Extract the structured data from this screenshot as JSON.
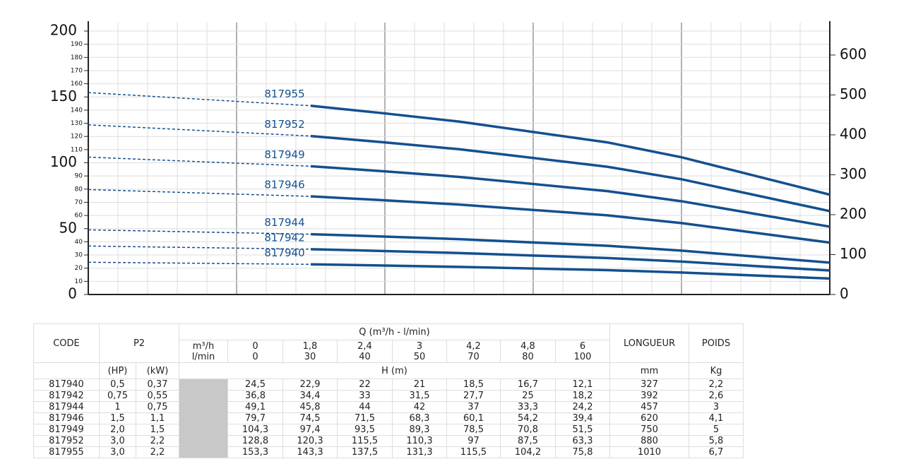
{
  "chart_data": {
    "type": "line",
    "x": [
      0,
      30,
      40,
      50,
      70,
      80,
      100
    ],
    "xlim": [
      0,
      100
    ],
    "xticks": [
      0,
      4,
      8,
      12,
      16,
      20,
      24,
      28,
      32,
      36,
      40,
      44,
      48,
      52,
      56,
      60,
      64,
      68,
      72,
      76,
      80,
      84,
      88,
      92,
      96,
      100
    ],
    "ylim": [
      0,
      200
    ],
    "yticks": [
      0,
      10,
      20,
      30,
      40,
      50,
      60,
      70,
      80,
      90,
      100,
      110,
      120,
      130,
      140,
      150,
      160,
      170,
      180,
      190,
      200
    ],
    "y2lim": [
      0,
      660
    ],
    "y2ticks": [
      0,
      100,
      200,
      300,
      400,
      500,
      600
    ],
    "grid": true,
    "series": [
      {
        "name": "817940",
        "color": "#13508f",
        "values": [
          24.5,
          22.9,
          22,
          21,
          18.5,
          16.7,
          12.1
        ]
      },
      {
        "name": "817942",
        "color": "#13508f",
        "values": [
          36.8,
          34.4,
          33,
          31.5,
          27.7,
          25,
          18.2
        ]
      },
      {
        "name": "817944",
        "color": "#13508f",
        "values": [
          49.1,
          45.8,
          44,
          42,
          37,
          33.3,
          24.2
        ]
      },
      {
        "name": "817946",
        "color": "#13508f",
        "values": [
          79.7,
          74.5,
          71.5,
          68.3,
          60.1,
          54.2,
          39.4
        ]
      },
      {
        "name": "817949",
        "color": "#13508f",
        "values": [
          104.3,
          97.4,
          93.5,
          89.3,
          78.5,
          70.8,
          51.5
        ]
      },
      {
        "name": "817952",
        "color": "#13508f",
        "values": [
          128.8,
          120.3,
          115.5,
          110.3,
          97,
          87.5,
          63.3
        ]
      },
      {
        "name": "817955",
        "color": "#13508f",
        "values": [
          153.3,
          143.3,
          137.5,
          131.3,
          115.5,
          104.2,
          75.8
        ]
      }
    ]
  },
  "table": {
    "code": "CODE",
    "p2": "P2",
    "q_title": "Q (m³/h - l/min)",
    "unit_m3h": "m³/h",
    "unit_lmin": "l/min",
    "q_m3h": [
      "0",
      "1,8",
      "2,4",
      "3",
      "4,2",
      "4,8",
      "6"
    ],
    "q_lmin": [
      "0",
      "30",
      "40",
      "50",
      "70",
      "80",
      "100"
    ],
    "longueur": "LONGUEUR",
    "poids": "POIDS",
    "hp": "(HP)",
    "kw": "(kW)",
    "h": "H (m)",
    "mm": "mm",
    "kg": "Kg",
    "rows": [
      [
        "817940",
        "0,5",
        "0,37",
        "24,5",
        "22,9",
        "22",
        "21",
        "18,5",
        "16,7",
        "12,1",
        "327",
        "2,2"
      ],
      [
        "817942",
        "0,75",
        "0,55",
        "36,8",
        "34,4",
        "33",
        "31,5",
        "27,7",
        "25",
        "18,2",
        "392",
        "2,6"
      ],
      [
        "817944",
        "1",
        "0,75",
        "49,1",
        "45,8",
        "44",
        "42",
        "37",
        "33,3",
        "24,2",
        "457",
        "3"
      ],
      [
        "817946",
        "1,5",
        "1,1",
        "79,7",
        "74,5",
        "71,5",
        "68,3",
        "60,1",
        "54,2",
        "39,4",
        "620",
        "4,1"
      ],
      [
        "817949",
        "2,0",
        "1,5",
        "104,3",
        "97,4",
        "93,5",
        "89,3",
        "78,5",
        "70,8",
        "51,5",
        "750",
        "5"
      ],
      [
        "817952",
        "3,0",
        "2,2",
        "128,8",
        "120,3",
        "115,5",
        "110,3",
        "97",
        "87,5",
        "63,3",
        "880",
        "5,8"
      ],
      [
        "817955",
        "3,0",
        "2,2",
        "153,3",
        "143,3",
        "137,5",
        "131,3",
        "115,5",
        "104,2",
        "75,8",
        "1010",
        "6,7"
      ]
    ]
  }
}
